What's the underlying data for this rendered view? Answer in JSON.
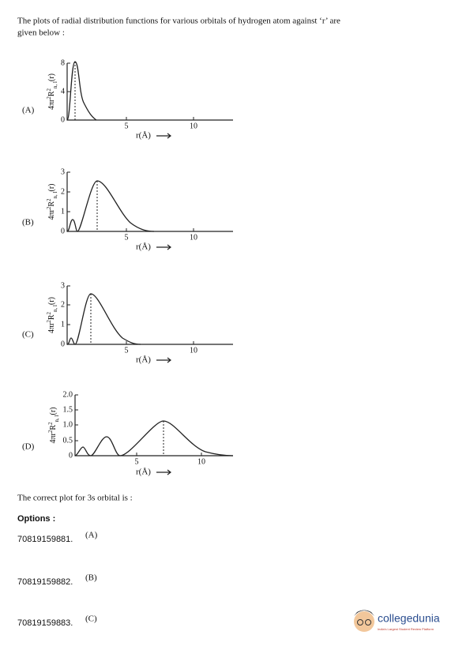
{
  "question": {
    "text_line1": "The plots of radial distribution functions for various orbitals of hydrogen atom against ‘r’ are",
    "text_line2": "given below :"
  },
  "plots": [
    {
      "label": "(A)",
      "y_label": {
        "base": "4πr",
        "sup1": "2",
        "r": "R",
        "sup2": "2",
        "sub": "n, l",
        "tail": "(r)"
      },
      "yticks": [
        "8",
        "4",
        "0"
      ],
      "xticks": [
        "5",
        "10"
      ],
      "x_label": "r(Å)"
    },
    {
      "label": "(B)",
      "y_label": {
        "base": "4πr",
        "sup1": "2",
        "r": "R",
        "sup2": "2",
        "sub": "n, l",
        "tail": "(r)"
      },
      "yticks": [
        "3",
        "2",
        "1",
        "0"
      ],
      "xticks": [
        "5",
        "10"
      ],
      "x_label": "r(Å)"
    },
    {
      "label": "(C)",
      "y_label": {
        "base": "4πr",
        "sup1": "2",
        "r": "R",
        "sup2": "2",
        "sub": "n, l",
        "tail": "(r)"
      },
      "yticks": [
        "3",
        "2",
        "1",
        "0"
      ],
      "xticks": [
        "5",
        "10"
      ],
      "x_label": "r(Å)"
    },
    {
      "label": "(D)",
      "y_label": {
        "base": "4πr",
        "sup1": "2",
        "r": "R",
        "sup2": "2",
        "sub": "n, l",
        "tail": "(r)"
      },
      "yticks": [
        "2.0",
        "1.5",
        "1.0",
        "0.5",
        "0"
      ],
      "xticks": [
        "5",
        "10"
      ],
      "x_label": "r(Å)"
    }
  ],
  "prompt": "The correct plot for 3s orbital is :",
  "options_heading": "Options :",
  "options": [
    {
      "id": "70819159881.",
      "label": "(A)"
    },
    {
      "id": "70819159882.",
      "label": "(B)"
    },
    {
      "id": "70819159883.",
      "label": "(C)"
    }
  ],
  "logo": {
    "name": "collegedunia",
    "tagline": "India's Largest Student Review Platform"
  }
}
